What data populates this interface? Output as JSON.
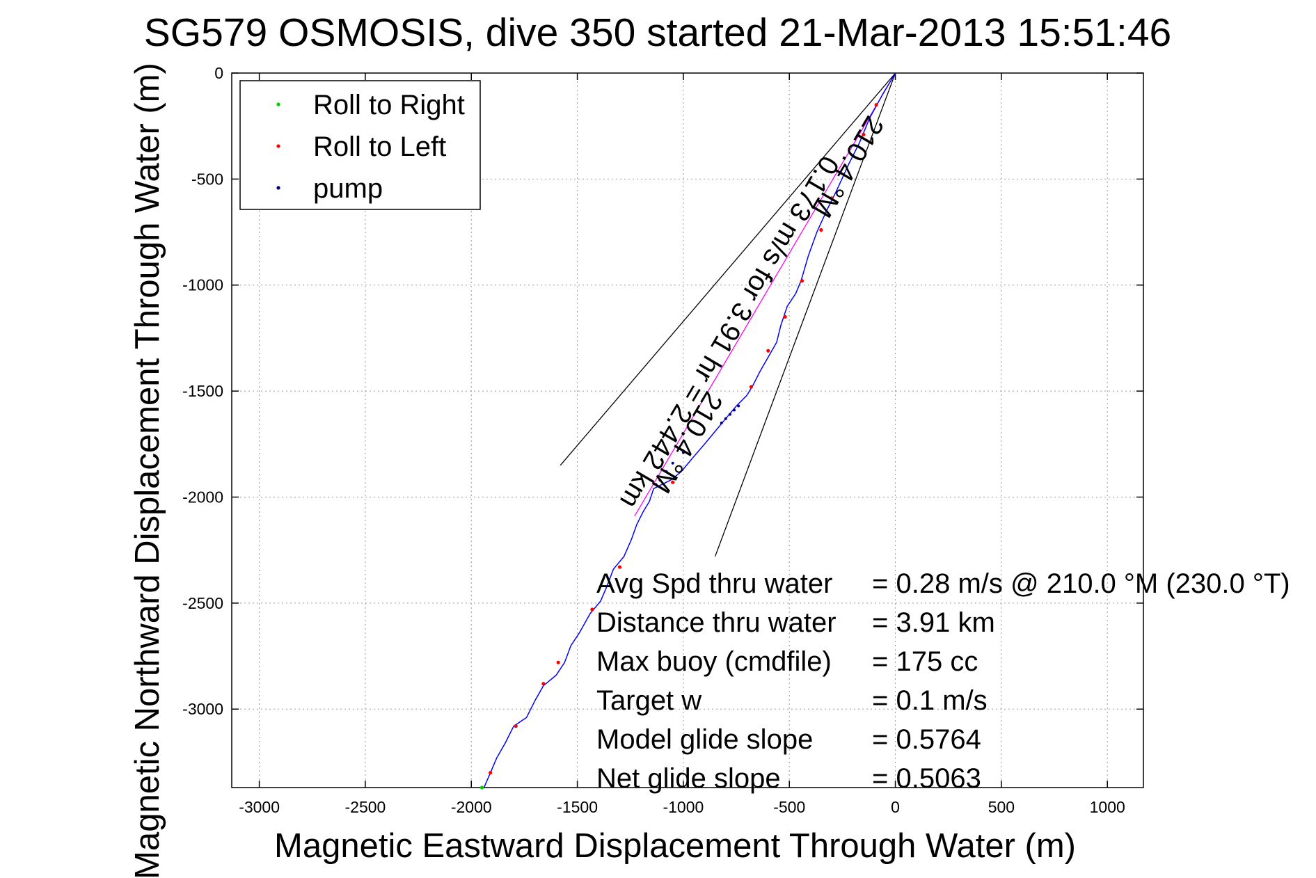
{
  "chart_data": {
    "type": "line",
    "title": "SG579 OSMOSIS, dive 350 started 21-Mar-2013 15:51:46",
    "xlabel": "Magnetic Eastward Displacement Through Water (m)",
    "ylabel": "Magnetic Northward Displacement Through Water (m)",
    "xlim": [
      -3130,
      1170
    ],
    "ylim": [
      -3370,
      0
    ],
    "xticks": [
      -3000,
      -2500,
      -2000,
      -1500,
      -1000,
      -500,
      0,
      500,
      1000
    ],
    "yticks": [
      0,
      -500,
      -1000,
      -1500,
      -2000,
      -2500,
      -3000
    ],
    "grid": true,
    "legend_position": "top-left",
    "legend": [
      {
        "label": "Roll to Right",
        "color": "#00cc00"
      },
      {
        "label": "Roll to Left",
        "color": "#ff0000"
      },
      {
        "label": "pump",
        "color": "#000080"
      }
    ],
    "track": {
      "color": "#0000ff",
      "points": [
        [
          0,
          0
        ],
        [
          -60,
          -100
        ],
        [
          -120,
          -210
        ],
        [
          -170,
          -330
        ],
        [
          -220,
          -430
        ],
        [
          -280,
          -560
        ],
        [
          -320,
          -640
        ],
        [
          -370,
          -750
        ],
        [
          -410,
          -860
        ],
        [
          -445,
          -980
        ],
        [
          -470,
          -1040
        ],
        [
          -510,
          -1100
        ],
        [
          -540,
          -1190
        ],
        [
          -560,
          -1270
        ],
        [
          -600,
          -1340
        ],
        [
          -640,
          -1410
        ],
        [
          -670,
          -1470
        ],
        [
          -700,
          -1520
        ],
        [
          -750,
          -1570
        ],
        [
          -800,
          -1630
        ],
        [
          -850,
          -1690
        ],
        [
          -900,
          -1750
        ],
        [
          -960,
          -1820
        ],
        [
          -1010,
          -1880
        ],
        [
          -1060,
          -1920
        ],
        [
          -1100,
          -1940
        ],
        [
          -1140,
          -1960
        ],
        [
          -1160,
          -2020
        ],
        [
          -1190,
          -2070
        ],
        [
          -1220,
          -2130
        ],
        [
          -1245,
          -2200
        ],
        [
          -1280,
          -2280
        ],
        [
          -1330,
          -2340
        ],
        [
          -1360,
          -2420
        ],
        [
          -1390,
          -2490
        ],
        [
          -1440,
          -2550
        ],
        [
          -1490,
          -2640
        ],
        [
          -1530,
          -2700
        ],
        [
          -1560,
          -2780
        ],
        [
          -1600,
          -2840
        ],
        [
          -1660,
          -2890
        ],
        [
          -1700,
          -2960
        ],
        [
          -1740,
          -3040
        ],
        [
          -1800,
          -3080
        ],
        [
          -1840,
          -3160
        ],
        [
          -1880,
          -3230
        ],
        [
          -1910,
          -3300
        ],
        [
          -1940,
          -3370
        ]
      ]
    },
    "heading_line": {
      "color": "#ff00ff",
      "points": [
        [
          0,
          0
        ],
        [
          -1230,
          -2090
        ]
      ]
    },
    "sector_lines": [
      {
        "color": "#000000",
        "points": [
          [
            0,
            0
          ],
          [
            -1580,
            -1850
          ]
        ]
      },
      {
        "color": "#000000",
        "points": [
          [
            0,
            0
          ],
          [
            -850,
            -2280
          ]
        ]
      }
    ],
    "roll_left_points": [
      [
        -90,
        -150
      ],
      [
        -150,
        -290
      ],
      [
        -300,
        -590
      ],
      [
        -350,
        -740
      ],
      [
        -440,
        -980
      ],
      [
        -520,
        -1150
      ],
      [
        -600,
        -1310
      ],
      [
        -680,
        -1480
      ],
      [
        -1050,
        -1930
      ],
      [
        -1300,
        -2330
      ],
      [
        -1430,
        -2530
      ],
      [
        -1590,
        -2780
      ],
      [
        -1660,
        -2880
      ],
      [
        -1790,
        -3080
      ],
      [
        -1910,
        -3300
      ]
    ],
    "roll_right_points": [
      [
        -1950,
        -3370
      ]
    ],
    "pump_points": [
      [
        -740,
        -1570
      ],
      [
        -760,
        -1590
      ],
      [
        -780,
        -1610
      ],
      [
        -800,
        -1630
      ],
      [
        -820,
        -1650
      ],
      [
        -1000,
        -1790
      ],
      [
        -1050,
        -1840
      ],
      [
        -1080,
        -1880
      ],
      [
        -1110,
        -1920
      ],
      [
        -1130,
        -1940
      ]
    ],
    "annotations": {
      "rows": [
        {
          "label": "Avg Spd thru water",
          "value": "=  0.28 m/s @ 210.0 °M (230.0 °T)"
        },
        {
          "label": "Distance thru water",
          "value": "=  3.91 km"
        },
        {
          "label": "Max buoy (cmdfile)",
          "value": "= 175 cc"
        },
        {
          "label": "Target w",
          "value": "= 0.1 m/s"
        },
        {
          "label": "Model glide slope",
          "value": "= 0.5764"
        },
        {
          "label": "Net glide slope",
          "value": "= 0.5063"
        }
      ],
      "rotated": [
        {
          "text": "0.173 m/s for 3.91 hr = 2.442 km",
          "anchor": [
            -820,
            -1200
          ]
        },
        {
          "text": "210.4 °M",
          "anchor": [
            -260,
            -420
          ]
        },
        {
          "text": "210.4 °M",
          "anchor": [
            -1020,
            -1720
          ]
        }
      ]
    }
  }
}
